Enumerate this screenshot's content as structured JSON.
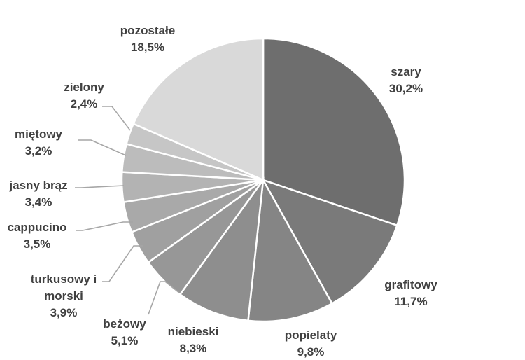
{
  "chart_data": {
    "type": "pie",
    "title": "",
    "slices": [
      {
        "label": "szary",
        "value": 30.2,
        "value_label": "30,2%",
        "color": "#6e6e6e"
      },
      {
        "label": "grafitowy",
        "value": 11.7,
        "value_label": "11,7%",
        "color": "#7a7a7a"
      },
      {
        "label": "popielaty",
        "value": 9.8,
        "value_label": "9,8%",
        "color": "#858585"
      },
      {
        "label": "niebieski",
        "value": 8.3,
        "value_label": "8,3%",
        "color": "#8e8e8e"
      },
      {
        "label": "beżowy",
        "value": 5.1,
        "value_label": "5,1%",
        "color": "#979797"
      },
      {
        "label": "turkusowy i morski",
        "label_lines": [
          "turkusowy i",
          "morski"
        ],
        "value": 3.9,
        "value_label": "3,9%",
        "color": "#a0a0a0"
      },
      {
        "label": "cappucino",
        "value": 3.5,
        "value_label": "3,5%",
        "color": "#a9a9a9"
      },
      {
        "label": "jasny brąz",
        "value": 3.4,
        "value_label": "3,4%",
        "color": "#b3b3b3"
      },
      {
        "label": "miętowy",
        "value": 3.2,
        "value_label": "3,2%",
        "color": "#bcbcbc"
      },
      {
        "label": "zielony",
        "value": 2.4,
        "value_label": "2,4%",
        "color": "#c6c6c6"
      },
      {
        "label": "pozostałe",
        "value": 18.5,
        "value_label": "18,5%",
        "color": "#d9d9d9"
      }
    ],
    "start_angle": "12 o'clock",
    "direction": "clockwise",
    "legend": "none",
    "data_labels": "outside, category and percent"
  }
}
